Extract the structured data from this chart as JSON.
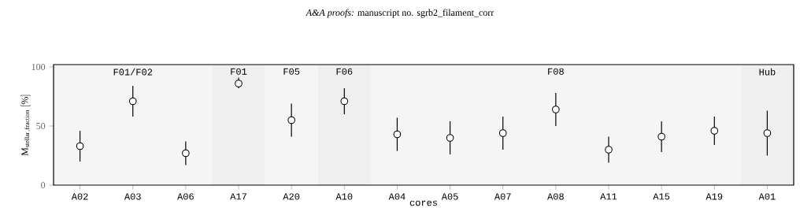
{
  "chart_data": {
    "type": "scatter",
    "xlabel": "cores",
    "ylabel": "\\mathrm{M}_{\\mathrm{stellar,fraction}}\\ [\\%]",
    "categories": [
      "A02",
      "A03",
      "A06",
      "A17",
      "A20",
      "A10",
      "A04",
      "A05",
      "A07",
      "A08",
      "A11",
      "A15",
      "A19",
      "A01"
    ],
    "series": [
      {
        "color": "#000000",
        "values": [
          33,
          71,
          27,
          86,
          55,
          71,
          43,
          40,
          44,
          64,
          30,
          41,
          46,
          44
        ],
        "errors": [
          [
            20,
            46
          ],
          [
            58,
            84
          ],
          [
            17,
            37
          ],
          [
            82,
            91
          ],
          [
            41,
            69
          ],
          [
            60,
            82
          ],
          [
            29,
            57
          ],
          [
            26,
            54
          ],
          [
            30,
            58
          ],
          [
            50,
            78
          ],
          [
            19,
            41
          ],
          [
            28,
            54
          ],
          [
            34,
            58
          ],
          [
            25,
            63
          ]
        ]
      }
    ],
    "ylim": [
      0,
      102
    ],
    "yticks": [
      0,
      50,
      100
    ],
    "grid": false,
    "marker": "circle",
    "bands": [
      {
        "axis": "x",
        "from": "A02",
        "to": "A06",
        "label": "F01/F02",
        "color": "#f5f5f5"
      },
      {
        "axis": "x",
        "from": "A17",
        "to": "A17",
        "label": "F01",
        "color": "#efefef"
      },
      {
        "axis": "x",
        "from": "A20",
        "to": "A20",
        "label": "F05",
        "color": "#f5f5f5"
      },
      {
        "axis": "x",
        "from": "A10",
        "to": "A10",
        "label": "F06",
        "color": "#efefef"
      },
      {
        "axis": "x",
        "from": "A04",
        "to": "A19",
        "label": "F08",
        "color": "#f5f5f5"
      },
      {
        "axis": "x",
        "from": "A01",
        "to": "A01",
        "label": "Hub",
        "color": "#efefef"
      }
    ],
    "annotations": [
      "*A&A proofs:* manuscript no. sgrb2_filament_corr"
    ]
  }
}
